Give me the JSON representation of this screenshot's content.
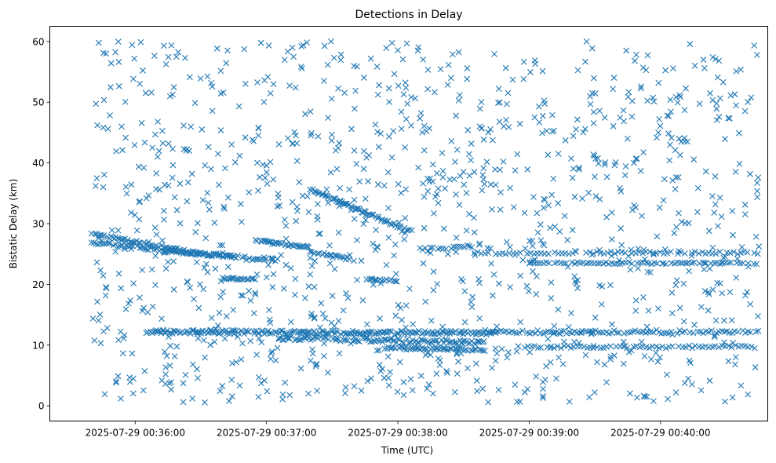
{
  "chart_data": {
    "type": "scatter",
    "title": "Detections in Delay",
    "xlabel": "Time (UTC)",
    "ylabel": "Bistatic Delay (km)",
    "marker": "x",
    "color": "#1f77b4",
    "grid": false,
    "legend": false,
    "xlim": [
      "2025-07-29 00:35:21",
      "2025-07-29 00:40:49"
    ],
    "ylim": [
      -2.5,
      62.5
    ],
    "xticks": [
      {
        "label": "2025-07-29 00:36:00",
        "value": "2025-07-29 00:36:00"
      },
      {
        "label": "2025-07-29 00:37:00",
        "value": "2025-07-29 00:37:00"
      },
      {
        "label": "2025-07-29 00:38:00",
        "value": "2025-07-29 00:38:00"
      },
      {
        "label": "2025-07-29 00:39:00",
        "value": "2025-07-29 00:39:00"
      },
      {
        "label": "2025-07-29 00:40:00",
        "value": "2025-07-29 00:40:00"
      }
    ],
    "yticks": [
      {
        "label": "0",
        "value": 0
      },
      {
        "label": "10",
        "value": 10
      },
      {
        "label": "20",
        "value": 20
      },
      {
        "label": "30",
        "value": 30
      },
      {
        "label": "40",
        "value": 40
      },
      {
        "label": "50",
        "value": 50
      },
      {
        "label": "60",
        "value": 60
      }
    ],
    "tracks": [
      {
        "start": "2025-07-29 00:35:40",
        "end": "2025-07-29 00:36:30",
        "y_start": 28.3,
        "y_end": 25.0,
        "step_s": 0.8,
        "jitter": 0.25
      },
      {
        "start": "2025-07-29 00:35:40",
        "end": "2025-07-29 00:36:45",
        "y_start": 26.8,
        "y_end": 24.5,
        "step_s": 1.0,
        "jitter": 0.25
      },
      {
        "start": "2025-07-29 00:36:10",
        "end": "2025-07-29 00:37:05",
        "y_start": 25.6,
        "y_end": 24.0,
        "step_s": 1.0,
        "jitter": 0.25
      },
      {
        "start": "2025-07-29 00:36:55",
        "end": "2025-07-29 00:37:20",
        "y_start": 27.2,
        "y_end": 26.0,
        "step_s": 0.7,
        "jitter": 0.2
      },
      {
        "start": "2025-07-29 00:37:20",
        "end": "2025-07-29 00:38:05",
        "y_start": 35.7,
        "y_end": 28.8,
        "step_s": 0.6,
        "jitter": 0.25
      },
      {
        "start": "2025-07-29 00:37:20",
        "end": "2025-07-29 00:37:40",
        "y_start": 25.5,
        "y_end": 24.0,
        "step_s": 0.8,
        "jitter": 0.3
      },
      {
        "start": "2025-07-29 00:38:10",
        "end": "2025-07-29 00:38:35",
        "y_start": 25.8,
        "y_end": 26.2,
        "step_s": 1.2,
        "jitter": 0.3
      },
      {
        "start": "2025-07-29 00:38:35",
        "end": "2025-07-29 00:40:45",
        "y_start": 25.2,
        "y_end": 25.2,
        "step_s": 1.6,
        "jitter": 0.2
      },
      {
        "start": "2025-07-29 00:39:00",
        "end": "2025-07-29 00:40:45",
        "y_start": 23.5,
        "y_end": 23.5,
        "step_s": 1.3,
        "jitter": 0.15
      },
      {
        "start": "2025-07-29 00:36:05",
        "end": "2025-07-29 00:38:45",
        "y_start": 12.2,
        "y_end": 12.0,
        "step_s": 0.7,
        "jitter": 0.3
      },
      {
        "start": "2025-07-29 00:37:05",
        "end": "2025-07-29 00:38:40",
        "y_start": 11.2,
        "y_end": 10.4,
        "step_s": 0.8,
        "jitter": 0.35
      },
      {
        "start": "2025-07-29 00:37:55",
        "end": "2025-07-29 00:38:40",
        "y_start": 9.6,
        "y_end": 9.2,
        "step_s": 0.8,
        "jitter": 0.2
      },
      {
        "start": "2025-07-29 00:38:40",
        "end": "2025-07-29 00:40:45",
        "y_start": 12.2,
        "y_end": 12.2,
        "step_s": 1.2,
        "jitter": 0.3
      },
      {
        "start": "2025-07-29 00:38:55",
        "end": "2025-07-29 00:40:45",
        "y_start": 9.7,
        "y_end": 9.7,
        "step_s": 1.5,
        "jitter": 0.2
      },
      {
        "start": "2025-07-29 00:36:40",
        "end": "2025-07-29 00:36:55",
        "y_start": 21.0,
        "y_end": 20.8,
        "step_s": 0.7,
        "jitter": 0.15
      },
      {
        "start": "2025-07-29 00:37:45",
        "end": "2025-07-29 00:38:00",
        "y_start": 20.9,
        "y_end": 20.6,
        "step_s": 0.7,
        "jitter": 0.15
      }
    ]
  }
}
